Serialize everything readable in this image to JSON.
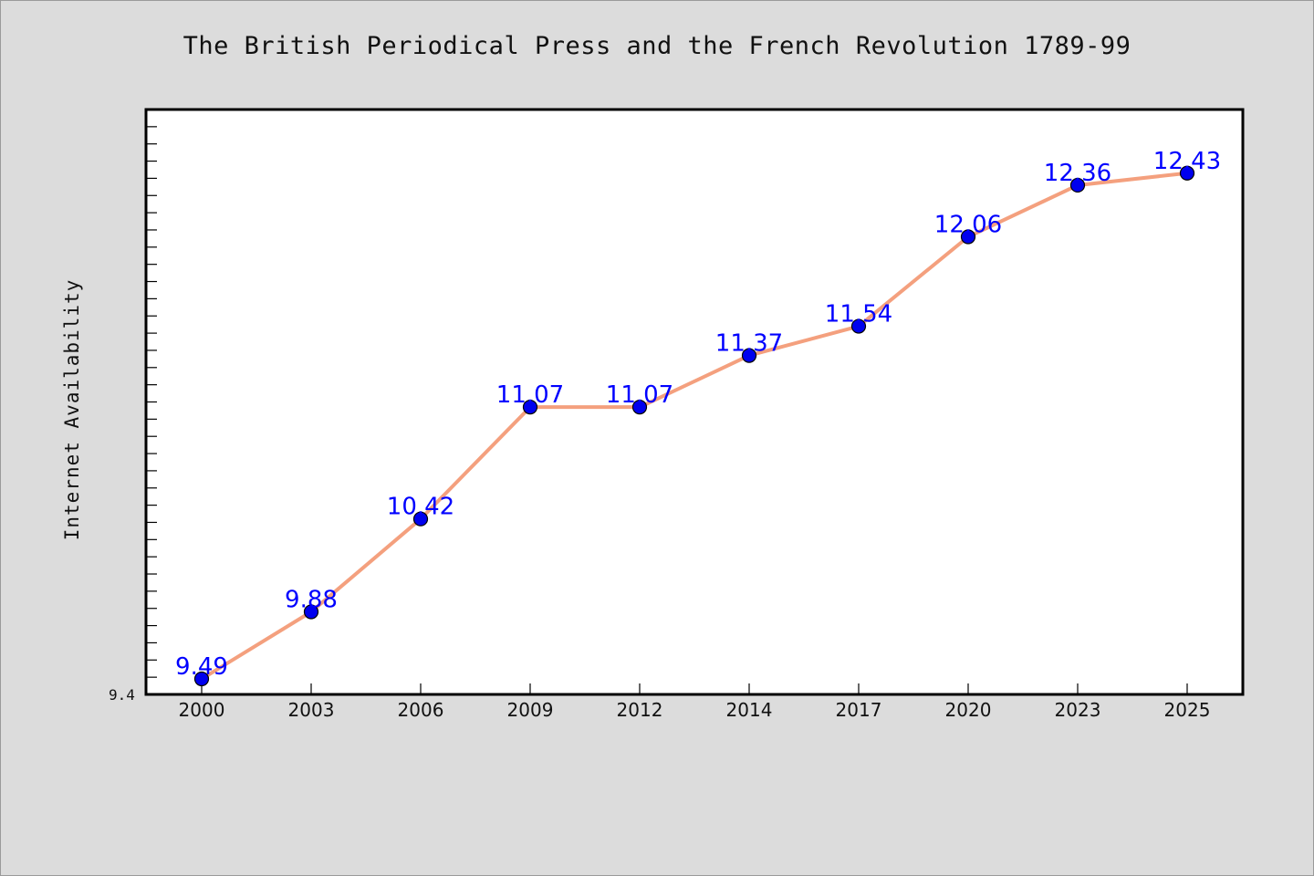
{
  "chart_data": {
    "type": "line",
    "title": "The British Periodical Press and the French Revolution 1789-99",
    "xlabel": "",
    "ylabel": "Internet Availability",
    "categories": [
      "2000",
      "2003",
      "2006",
      "2009",
      "2012",
      "2014",
      "2017",
      "2020",
      "2023",
      "2025"
    ],
    "values": [
      9.49,
      9.88,
      10.42,
      11.07,
      11.07,
      11.37,
      11.54,
      12.06,
      12.36,
      12.43
    ],
    "data_labels": [
      "9.49",
      "9.88",
      "10.42",
      "11.07",
      "11.07",
      "11.37",
      "11.54",
      "12.06",
      "12.36",
      "12.43"
    ],
    "y_min_label": "9.4",
    "ylim": [
      9.4,
      12.8
    ],
    "grid": false,
    "colors": {
      "line": "#f4a07e",
      "marker": "#0000ee",
      "data_label": "#0000ff",
      "plot_background": "#ffffff",
      "figure_background": "#dcdcdc"
    }
  }
}
